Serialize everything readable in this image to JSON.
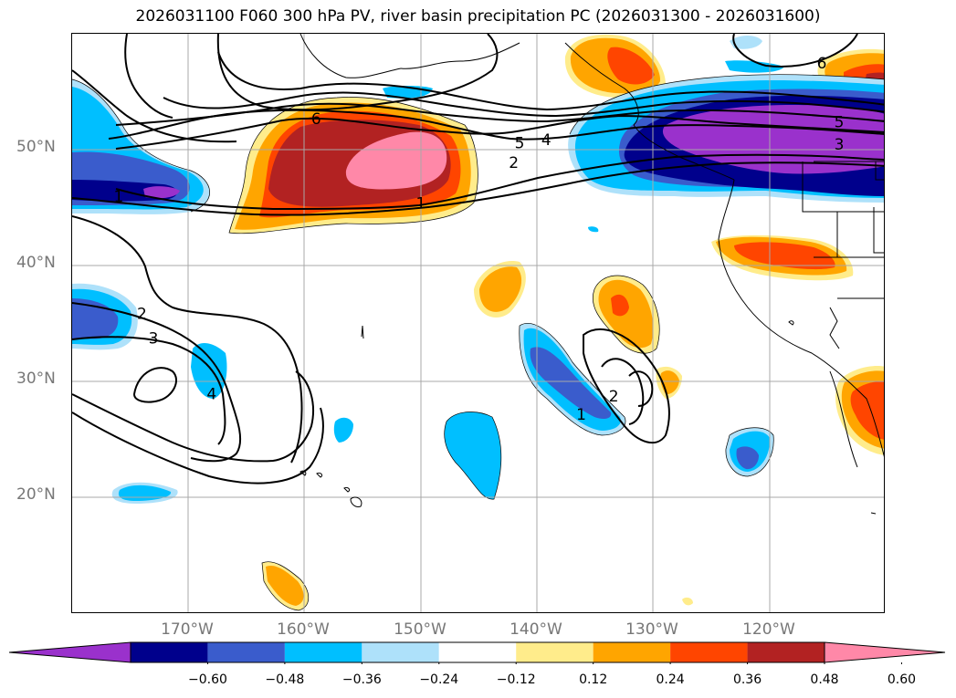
{
  "title": "2026031100 F060 300 hPa PV, river basin precipitation PC (2026031300 - 2026031600)",
  "map": {
    "lon_range": [
      -180,
      -110
    ],
    "lat_range": [
      10,
      60
    ],
    "lat_labels": [
      {
        "lat": 50,
        "label": "50°N"
      },
      {
        "lat": 40,
        "label": "40°N"
      },
      {
        "lat": 30,
        "label": "30°N"
      },
      {
        "lat": 20,
        "label": "20°N"
      }
    ],
    "lon_labels": [
      {
        "lon": -170,
        "label": "170°W"
      },
      {
        "lon": -160,
        "label": "160°W"
      },
      {
        "lon": -150,
        "label": "150°W"
      },
      {
        "lon": -140,
        "label": "140°W"
      },
      {
        "lon": -130,
        "label": "130°W"
      },
      {
        "lon": -120,
        "label": "120°W"
      }
    ],
    "gridlines": true,
    "contour_labels": [
      {
        "text": "1",
        "lon": -176,
        "lat": 46
      },
      {
        "text": "6",
        "lon": -159,
        "lat": 52.7
      },
      {
        "text": "1",
        "lon": -150,
        "lat": 45.4
      },
      {
        "text": "5",
        "lon": -141.5,
        "lat": 50.6
      },
      {
        "text": "4",
        "lon": -139.2,
        "lat": 50.9
      },
      {
        "text": "2",
        "lon": -142,
        "lat": 48.9
      },
      {
        "text": "6",
        "lon": -115.5,
        "lat": 57.5
      },
      {
        "text": "5",
        "lon": -114,
        "lat": 52.4
      },
      {
        "text": "3",
        "lon": -114,
        "lat": 50.5
      },
      {
        "text": "2",
        "lon": -174,
        "lat": 35.9
      },
      {
        "text": "3",
        "lon": -173,
        "lat": 33.8
      },
      {
        "text": "4",
        "lon": -168,
        "lat": 29
      },
      {
        "text": "2",
        "lon": -133.4,
        "lat": 28.8
      },
      {
        "text": "1",
        "lon": -136.2,
        "lat": 27.2
      }
    ]
  },
  "colorbar": {
    "ticks": [
      "−0.60",
      "−0.48",
      "−0.36",
      "−0.24",
      "−0.12",
      "0.12",
      "0.24",
      "0.36",
      "0.48",
      "0.60"
    ],
    "colors": [
      "#9a31cc",
      "#00008c",
      "#3a5ccc",
      "#00bfff",
      "#aee1fa",
      "#ffffff",
      "#ffec8b",
      "#ffa500",
      "#ff4500",
      "#b22222",
      "#ff88a8"
    ],
    "extend": "both"
  },
  "colors": {
    "purple": "#9a31cc",
    "navy": "#00008c",
    "royal_blue": "#3a5ccc",
    "deep_sky": "#00bfff",
    "light_blue": "#aee1fa",
    "khaki": "#ffec8b",
    "orange": "#ffa500",
    "orange_red": "#ff4500",
    "firebrick": "#b22222",
    "pink": "#ff88a8"
  }
}
